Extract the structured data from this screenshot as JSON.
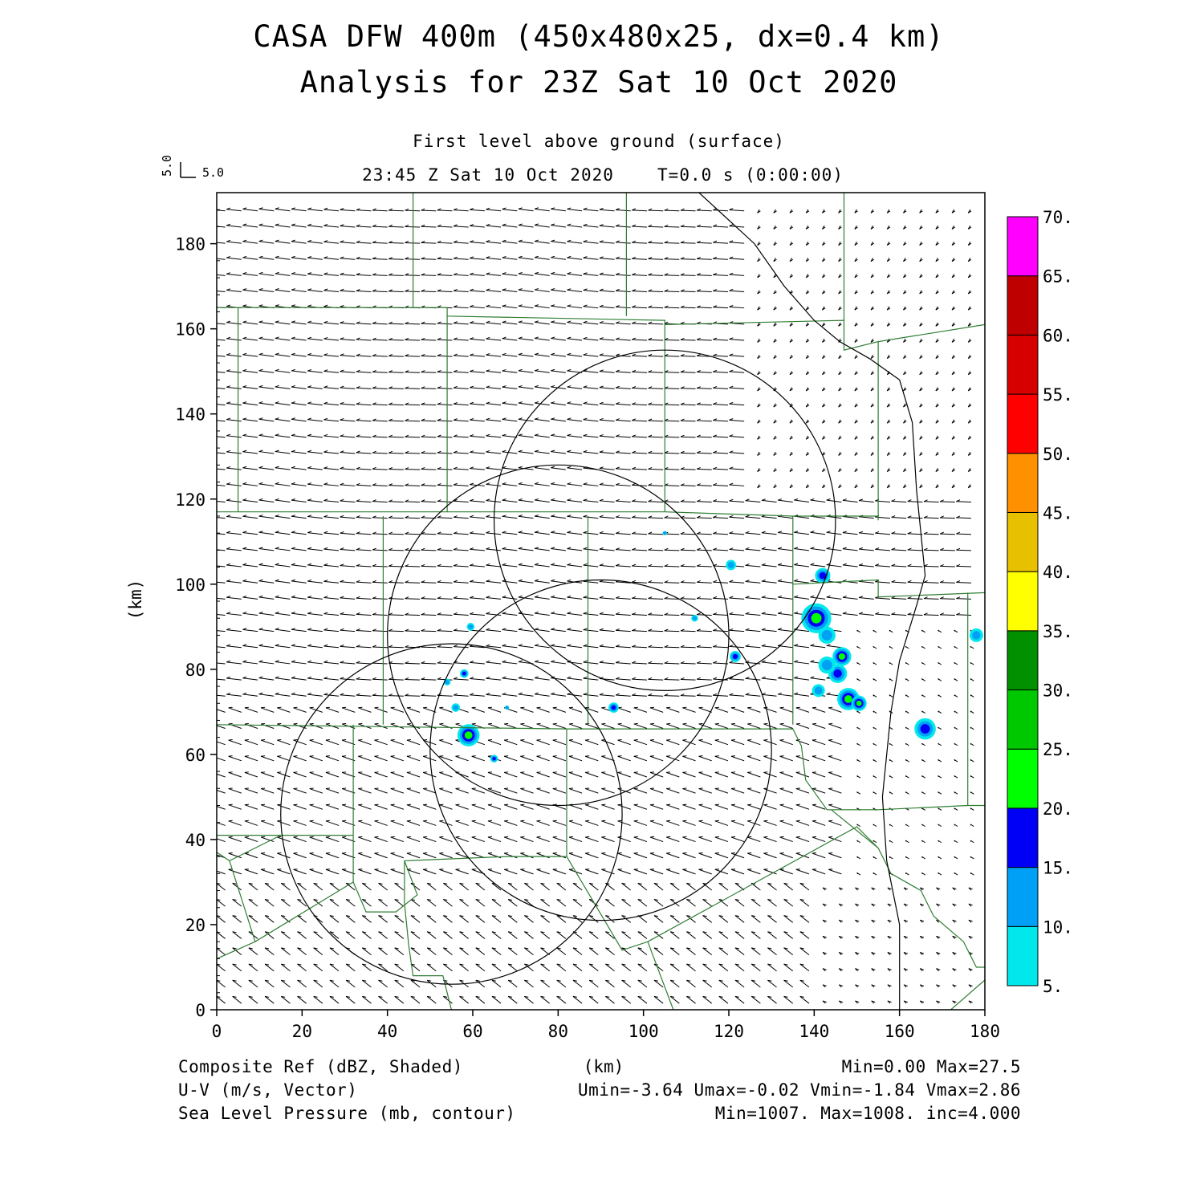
{
  "header": {
    "title": "CASA DFW 400m (450x480x25, dx=0.4 km)",
    "subtitle": "Analysis for 23Z Sat 10 Oct 2020",
    "level": "First level above ground (surface)",
    "valid_time": "23:45 Z Sat 10 Oct 2020",
    "forecast_time": "T=0.0 s (0:00:00)",
    "vector_ref_v": "5.0",
    "vector_ref_u": "5.0"
  },
  "axes": {
    "xlabel": "(km)",
    "ylabel": "(km)",
    "xlim": [
      0,
      180
    ],
    "ylim": [
      0,
      192
    ],
    "x_ticks": [
      "0",
      "20",
      "40",
      "60",
      "80",
      "100",
      "120",
      "140",
      "160",
      "180"
    ],
    "y_ticks": [
      "0",
      "20",
      "40",
      "60",
      "80",
      "100",
      "120",
      "140",
      "160",
      "180"
    ]
  },
  "colorbar": {
    "labels": [
      "5.",
      "10.",
      "15.",
      "20.",
      "25.",
      "30.",
      "35.",
      "40.",
      "45.",
      "50.",
      "55.",
      "60.",
      "65.",
      "70."
    ],
    "colors": [
      "#00e8ec",
      "#00a0f6",
      "#0000f6",
      "#00ff00",
      "#00c800",
      "#009000",
      "#ffff00",
      "#e7c000",
      "#ff9000",
      "#ff0000",
      "#d60000",
      "#c00000",
      "#ff00ff"
    ]
  },
  "footer": {
    "field1": "Composite Ref (dBZ, Shaded)",
    "field1_stats": "Min=0.00 Max=27.5",
    "field2": "U-V (m/s, Vector)",
    "field2_stats": "Umin=-3.64 Umax=-0.02 Vmin=-1.84 Vmax=2.86",
    "field3": "Sea Level Pressure (mb, contour)",
    "field3_stats": "Min=1007. Max=1008. inc=4.000"
  },
  "map": {
    "line_color": "#2e7d32",
    "range_rings": [
      {
        "cx": 55,
        "cy": 46,
        "r": 40
      },
      {
        "cx": 90,
        "cy": 61,
        "r": 40
      },
      {
        "cx": 80,
        "cy": 88,
        "r": 40
      },
      {
        "cx": 105,
        "cy": 115,
        "r": 40
      }
    ]
  },
  "chart_data": {
    "type": "map",
    "reflectivity_cells": [
      {
        "x": 105,
        "y": 112,
        "r": 0.5,
        "dbz": 10
      },
      {
        "x": 120.5,
        "y": 104.5,
        "r": 1.2,
        "dbz": 10
      },
      {
        "x": 142,
        "y": 102,
        "r": 1.8,
        "dbz": 15
      },
      {
        "x": 140.5,
        "y": 92,
        "r": 3.5,
        "dbz": 20
      },
      {
        "x": 143,
        "y": 88,
        "r": 2.0,
        "dbz": 10
      },
      {
        "x": 146.5,
        "y": 83,
        "r": 2.2,
        "dbz": 20
      },
      {
        "x": 145.5,
        "y": 79,
        "r": 2.2,
        "dbz": 15
      },
      {
        "x": 143,
        "y": 81,
        "r": 2.0,
        "dbz": 10
      },
      {
        "x": 148,
        "y": 73,
        "r": 2.6,
        "dbz": 20
      },
      {
        "x": 150.5,
        "y": 72,
        "r": 1.8,
        "dbz": 20
      },
      {
        "x": 141,
        "y": 75,
        "r": 1.5,
        "dbz": 10
      },
      {
        "x": 166,
        "y": 66,
        "r": 2.5,
        "dbz": 15
      },
      {
        "x": 178,
        "y": 88,
        "r": 1.6,
        "dbz": 10
      },
      {
        "x": 121.5,
        "y": 83,
        "r": 1.3,
        "dbz": 15
      },
      {
        "x": 112,
        "y": 92,
        "r": 0.8,
        "dbz": 10
      },
      {
        "x": 93,
        "y": 71,
        "r": 1.2,
        "dbz": 15
      },
      {
        "x": 59,
        "y": 64.5,
        "r": 2.6,
        "dbz": 20
      },
      {
        "x": 56,
        "y": 71,
        "r": 1.0,
        "dbz": 10
      },
      {
        "x": 58,
        "y": 79,
        "r": 1.0,
        "dbz": 15
      },
      {
        "x": 59.5,
        "y": 90,
        "r": 0.9,
        "dbz": 10
      },
      {
        "x": 54,
        "y": 77,
        "r": 0.8,
        "dbz": 10
      },
      {
        "x": 65,
        "y": 59,
        "r": 0.9,
        "dbz": 15
      },
      {
        "x": 68,
        "y": 71,
        "r": 0.5,
        "dbz": 10
      }
    ]
  }
}
